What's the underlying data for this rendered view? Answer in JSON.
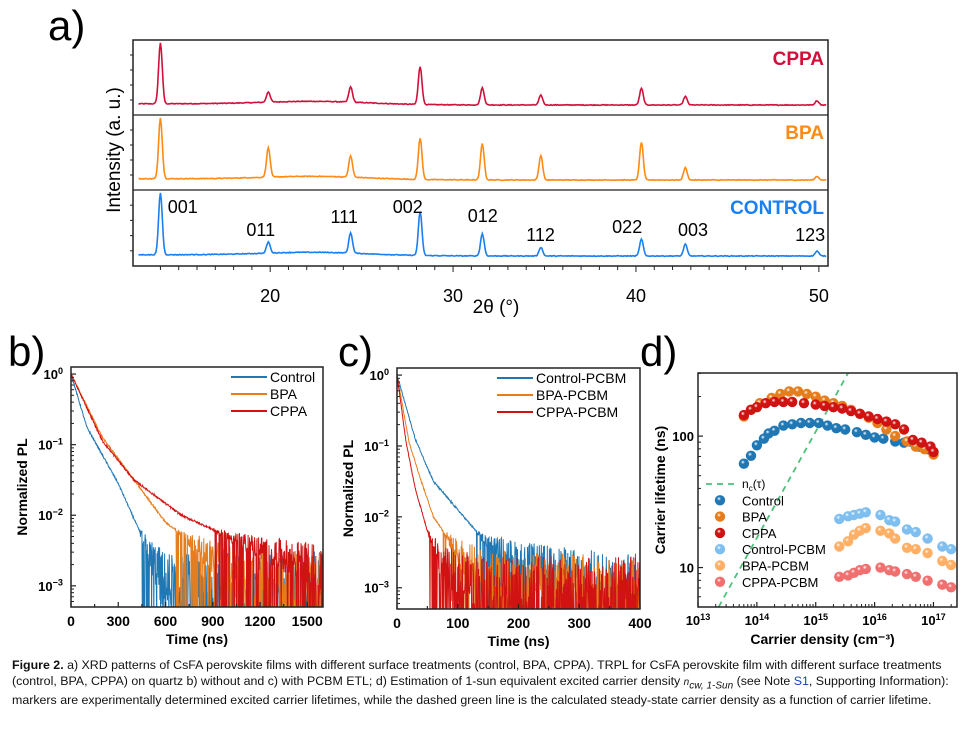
{
  "figure_number": "Figure 2.",
  "caption": {
    "label": "Figure 2.",
    "part1": " a) XRD patterns of CsFA perovskite films with different surface treatments (control, BPA, CPPA). TRPL for CsFA perovskite film with different surface treatments (control, BPA, CPPA) on quartz b) without and c) with PCBM ETL; d) Estimation of 1-sun equivalent excited carrier density ",
    "symbol": "n",
    "subscript": "cw, 1-Sun",
    "part2": " (see Note ",
    "link": "S1",
    "part3": ", Supporting Information): markers are experimentally determined excited carrier lifetimes, while the dashed green line is the calculated steady-state carrier density as a function of carrier lifetime."
  },
  "colors": {
    "cppa_xrd": "#d0103a",
    "bpa_xrd": "#ff8a14",
    "control_xrd": "#1a7ff0",
    "control": "#1f77b4",
    "bpa": "#e57d1c",
    "cppa": "#d11212",
    "control_pcbm": "#7fbff0",
    "bpa_pcbm": "#ffb066",
    "cppa_pcbm": "#f07070",
    "nc_line": "#4cc07a"
  },
  "chart_data": [
    {
      "id": "a",
      "panel_label": "a)",
      "type": "line",
      "title": "",
      "xlabel": "2θ (°)",
      "ylabel": "Intensity (a. u.)",
      "xlim": [
        12.5,
        50.5
      ],
      "xticks": [
        20,
        30,
        40,
        50
      ],
      "xtick_labels": [
        "20",
        "30",
        "40",
        "50"
      ],
      "series": [
        {
          "name": "CPPA",
          "color": "#d0103a",
          "peaks": [
            [
              14.0,
              1.0
            ],
            [
              19.9,
              0.17
            ],
            [
              24.4,
              0.25
            ],
            [
              28.2,
              0.62
            ],
            [
              31.6,
              0.28
            ],
            [
              34.8,
              0.16
            ],
            [
              40.3,
              0.27
            ],
            [
              42.7,
              0.14
            ],
            [
              49.9,
              0.07
            ]
          ]
        },
        {
          "name": "BPA",
          "color": "#ff8a14",
          "peaks": [
            [
              14.0,
              1.0
            ],
            [
              19.9,
              0.48
            ],
            [
              24.4,
              0.35
            ],
            [
              28.2,
              0.68
            ],
            [
              31.6,
              0.6
            ],
            [
              34.8,
              0.4
            ],
            [
              40.3,
              0.62
            ],
            [
              42.7,
              0.2
            ],
            [
              49.9,
              0.06
            ]
          ]
        },
        {
          "name": "CONTROL",
          "color": "#1a7ff0",
          "peaks": [
            [
              14.0,
              1.0
            ],
            [
              19.9,
              0.18
            ],
            [
              24.4,
              0.33
            ],
            [
              28.2,
              0.7
            ],
            [
              31.6,
              0.36
            ],
            [
              34.8,
              0.14
            ],
            [
              40.3,
              0.27
            ],
            [
              42.7,
              0.19
            ],
            [
              49.9,
              0.08
            ]
          ]
        }
      ],
      "annotations": [
        {
          "text": "001",
          "x": 14.0
        },
        {
          "text": "011",
          "x": 19.9
        },
        {
          "text": "111",
          "x": 24.4
        },
        {
          "text": "002",
          "x": 28.2
        },
        {
          "text": "012",
          "x": 31.6
        },
        {
          "text": "112",
          "x": 34.8
        },
        {
          "text": "022",
          "x": 40.3
        },
        {
          "text": "003",
          "x": 42.7
        },
        {
          "text": "123",
          "x": 49.9
        }
      ]
    },
    {
      "id": "b",
      "panel_label": "b)",
      "type": "line",
      "xlabel": "Time (ns)",
      "ylabel": "Normalized PL",
      "xlim": [
        0,
        1600
      ],
      "ylim_log10": [
        -3.3,
        0.1
      ],
      "xticks": [
        0,
        300,
        600,
        900,
        1200,
        1500
      ],
      "yticks_exp": [
        0,
        -1,
        -2,
        -3
      ],
      "legend": "top-right",
      "series": [
        {
          "name": "Control",
          "color": "#1f77b4",
          "decay": [
            [
              0,
              0
            ],
            [
              100,
              -0.75
            ],
            [
              300,
              -1.55
            ],
            [
              450,
              -2.3
            ],
            [
              600,
              -3.0
            ]
          ]
        },
        {
          "name": "BPA",
          "color": "#e57d1c",
          "decay": [
            [
              0,
              0
            ],
            [
              200,
              -0.9
            ],
            [
              400,
              -1.5
            ],
            [
              600,
              -2.1
            ],
            [
              900,
              -2.6
            ],
            [
              1200,
              -2.9
            ],
            [
              1600,
              -3.0
            ]
          ]
        },
        {
          "name": "CPPA",
          "color": "#d11212",
          "decay": [
            [
              0,
              0
            ],
            [
              200,
              -0.95
            ],
            [
              400,
              -1.5
            ],
            [
              700,
              -2.0
            ],
            [
              1000,
              -2.3
            ],
            [
              1300,
              -2.55
            ],
            [
              1600,
              -2.75
            ]
          ]
        }
      ]
    },
    {
      "id": "c",
      "panel_label": "c)",
      "type": "line",
      "xlabel": "Time (ns)",
      "ylabel": "Normalized PL",
      "xlim": [
        0,
        400
      ],
      "ylim_log10": [
        -3.3,
        0.1
      ],
      "xticks": [
        0,
        100,
        200,
        300,
        400
      ],
      "yticks_exp": [
        0,
        -1,
        -2,
        -3
      ],
      "legend": "top-right",
      "series": [
        {
          "name": "Control-PCBM",
          "color": "#1f77b4",
          "decay": [
            [
              0,
              0
            ],
            [
              30,
              -0.9
            ],
            [
              60,
              -1.5
            ],
            [
              100,
              -1.9
            ],
            [
              140,
              -2.3
            ],
            [
              200,
              -2.6
            ],
            [
              300,
              -2.85
            ],
            [
              400,
              -3.0
            ]
          ]
        },
        {
          "name": "BPA-PCBM",
          "color": "#e57d1c",
          "decay": [
            [
              0,
              0
            ],
            [
              20,
              -0.95
            ],
            [
              40,
              -1.5
            ],
            [
              60,
              -2.0
            ],
            [
              100,
              -2.5
            ],
            [
              150,
              -2.9
            ],
            [
              400,
              -3.1
            ]
          ]
        },
        {
          "name": "CPPA-PCBM",
          "color": "#d11212",
          "decay": [
            [
              0,
              0
            ],
            [
              15,
              -0.95
            ],
            [
              30,
              -1.6
            ],
            [
              50,
              -2.2
            ],
            [
              80,
              -2.8
            ],
            [
              150,
              -3.1
            ],
            [
              400,
              -3.1
            ]
          ]
        }
      ]
    },
    {
      "id": "d",
      "panel_label": "d)",
      "type": "scatter",
      "xlabel": "Carrier density (cm⁻³)",
      "ylabel": "Carrier lifetime (ns)",
      "xlim_log10": [
        13,
        17.4
      ],
      "ylim_log10": [
        0.7,
        2.48
      ],
      "xticks_exp": [
        13,
        14,
        15,
        16,
        17
      ],
      "yticks": [
        10,
        100
      ],
      "legend": "bottom-left",
      "series": [
        {
          "name": "nc(τ)",
          "type": "dashed-line",
          "color": "#4cc07a",
          "points": [
            [
              13.35,
              0.7
            ],
            [
              15.55,
              2.48
            ]
          ]
        },
        {
          "name": "Control",
          "color": "#1f77b4",
          "points": [
            [
              13.78,
              1.79
            ],
            [
              13.9,
              1.85
            ],
            [
              14.0,
              1.93
            ],
            [
              14.12,
              1.98
            ],
            [
              14.2,
              2.02
            ],
            [
              14.3,
              2.04
            ],
            [
              14.45,
              2.08
            ],
            [
              14.6,
              2.09
            ],
            [
              14.75,
              2.1
            ],
            [
              14.9,
              2.1
            ],
            [
              15.05,
              2.1
            ],
            [
              15.2,
              2.08
            ],
            [
              15.35,
              2.06
            ],
            [
              15.5,
              2.05
            ],
            [
              15.7,
              2.03
            ],
            [
              15.85,
              2.01
            ],
            [
              16.0,
              1.99
            ],
            [
              16.15,
              1.98
            ],
            [
              16.35,
              1.96
            ],
            [
              16.5,
              1.95
            ],
            [
              16.6,
              1.96
            ],
            [
              16.75,
              1.92
            ],
            [
              16.9,
              1.9
            ],
            [
              17.0,
              1.88
            ]
          ]
        },
        {
          "name": "BPA",
          "color": "#e57d1c",
          "points": [
            [
              13.78,
              2.15
            ],
            [
              13.9,
              2.2
            ],
            [
              14.05,
              2.25
            ],
            [
              14.25,
              2.29
            ],
            [
              14.4,
              2.32
            ],
            [
              14.55,
              2.34
            ],
            [
              14.7,
              2.34
            ],
            [
              14.85,
              2.32
            ],
            [
              15.0,
              2.3
            ],
            [
              15.15,
              2.27
            ],
            [
              15.3,
              2.25
            ],
            [
              15.45,
              2.23
            ],
            [
              15.6,
              2.2
            ],
            [
              15.75,
              2.17
            ],
            [
              15.9,
              2.14
            ],
            [
              16.05,
              2.1
            ],
            [
              16.2,
              2.05
            ],
            [
              16.35,
              2.0
            ],
            [
              16.55,
              1.96
            ],
            [
              16.7,
              1.92
            ],
            [
              16.85,
              1.9
            ],
            [
              17.0,
              1.86
            ]
          ]
        },
        {
          "name": "CPPA",
          "color": "#d11212",
          "points": [
            [
              13.78,
              2.16
            ],
            [
              13.9,
              2.2
            ],
            [
              14.0,
              2.22
            ],
            [
              14.15,
              2.25
            ],
            [
              14.3,
              2.26
            ],
            [
              14.45,
              2.26
            ],
            [
              14.6,
              2.26
            ],
            [
              14.8,
              2.25
            ],
            [
              15.0,
              2.24
            ],
            [
              15.15,
              2.23
            ],
            [
              15.3,
              2.22
            ],
            [
              15.45,
              2.21
            ],
            [
              15.6,
              2.19
            ],
            [
              15.75,
              2.17
            ],
            [
              15.9,
              2.15
            ],
            [
              16.05,
              2.13
            ],
            [
              16.2,
              2.11
            ],
            [
              16.35,
              2.09
            ],
            [
              16.5,
              2.05
            ],
            [
              16.65,
              1.97
            ],
            [
              16.8,
              1.95
            ],
            [
              16.95,
              1.92
            ],
            [
              17.0,
              1.88
            ]
          ]
        },
        {
          "name": "Control-PCBM",
          "color": "#7fbff0",
          "points": [
            [
              15.4,
              1.37
            ],
            [
              15.55,
              1.39
            ],
            [
              15.65,
              1.4
            ],
            [
              15.75,
              1.41
            ],
            [
              15.85,
              1.42
            ],
            [
              16.1,
              1.4
            ],
            [
              16.25,
              1.36
            ],
            [
              16.35,
              1.35
            ],
            [
              16.55,
              1.29
            ],
            [
              16.7,
              1.27
            ],
            [
              16.9,
              1.22
            ],
            [
              17.15,
              1.16
            ],
            [
              17.3,
              1.14
            ]
          ]
        },
        {
          "name": "BPA-PCBM",
          "color": "#ffb066",
          "points": [
            [
              15.4,
              1.16
            ],
            [
              15.55,
              1.2
            ],
            [
              15.65,
              1.25
            ],
            [
              15.75,
              1.28
            ],
            [
              15.85,
              1.3
            ],
            [
              16.1,
              1.28
            ],
            [
              16.25,
              1.26
            ],
            [
              16.35,
              1.22
            ],
            [
              16.55,
              1.15
            ],
            [
              16.7,
              1.14
            ],
            [
              16.9,
              1.11
            ],
            [
              17.15,
              1.05
            ],
            [
              17.3,
              1.02
            ]
          ]
        },
        {
          "name": "CPPA-PCBM",
          "color": "#f07070",
          "points": [
            [
              15.4,
              0.93
            ],
            [
              15.55,
              0.94
            ],
            [
              15.65,
              0.96
            ],
            [
              15.75,
              0.98
            ],
            [
              15.85,
              0.99
            ],
            [
              16.1,
              1.0
            ],
            [
              16.25,
              0.98
            ],
            [
              16.35,
              0.97
            ],
            [
              16.55,
              0.95
            ],
            [
              16.7,
              0.93
            ],
            [
              16.9,
              0.9
            ],
            [
              17.15,
              0.87
            ],
            [
              17.3,
              0.85
            ]
          ]
        }
      ]
    }
  ]
}
